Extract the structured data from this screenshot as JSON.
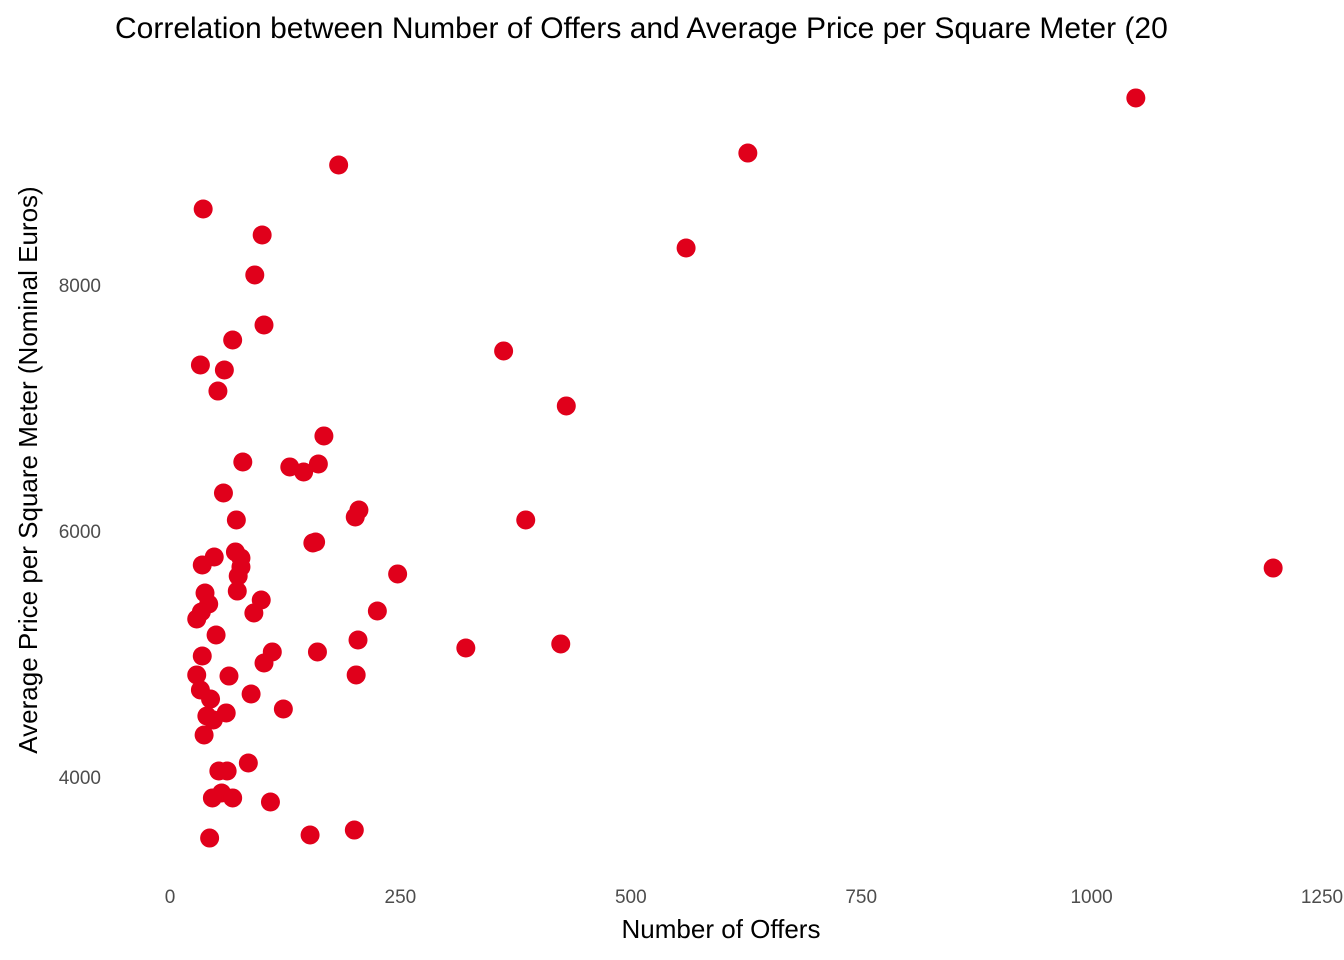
{
  "chart_data": {
    "type": "scatter",
    "title": "Correlation between Number of Offers and Average Price per Square Meter (20",
    "x_label": "Number of Offers",
    "y_label": "Average Price per Square Meter (Nominal Euros)",
    "x": [
      1048,
      627,
      183,
      36,
      100,
      560,
      92,
      102,
      68,
      33,
      59,
      362,
      52,
      430,
      167,
      79,
      130,
      145,
      161,
      58,
      72,
      386,
      205,
      201,
      155,
      158,
      71,
      48,
      77,
      35,
      77,
      74,
      247,
      1197,
      38,
      73,
      42,
      99,
      34,
      29,
      91,
      225,
      50,
      204,
      424,
      321,
      111,
      160,
      35,
      102,
      29,
      64,
      202,
      33,
      44,
      88,
      123,
      40,
      61,
      47,
      37,
      85,
      53,
      62,
      56,
      46,
      68,
      109,
      200,
      152,
      43
    ],
    "values": [
      9537,
      9089,
      8992,
      8634,
      8423,
      8317,
      8098,
      7691,
      7569,
      7366,
      7325,
      7480,
      7154,
      7033,
      6789,
      6577,
      6537,
      6496,
      6561,
      6325,
      6106,
      6106,
      6187,
      6130,
      5919,
      5927,
      5846,
      5805,
      5797,
      5740,
      5724,
      5650,
      5667,
      5715,
      5512,
      5528,
      5423,
      5455,
      5358,
      5301,
      5350,
      5366,
      5171,
      5130,
      5098,
      5065,
      5033,
      5033,
      5000,
      4943,
      4846,
      4837,
      4846,
      4724,
      4650,
      4691,
      4569,
      4512,
      4537,
      4480,
      4358,
      4130,
      4065,
      4065,
      3886,
      3846,
      3846,
      3813,
      3585,
      3545,
      3520
    ],
    "color": "#e0001b",
    "xlim": [
      0,
      1250
    ],
    "xticks": [
      0,
      250,
      500,
      750,
      1000,
      1250
    ],
    "ylim": [
      3000,
      10000
    ],
    "yticks": [
      4000,
      6000,
      8000
    ],
    "grid": false
  }
}
